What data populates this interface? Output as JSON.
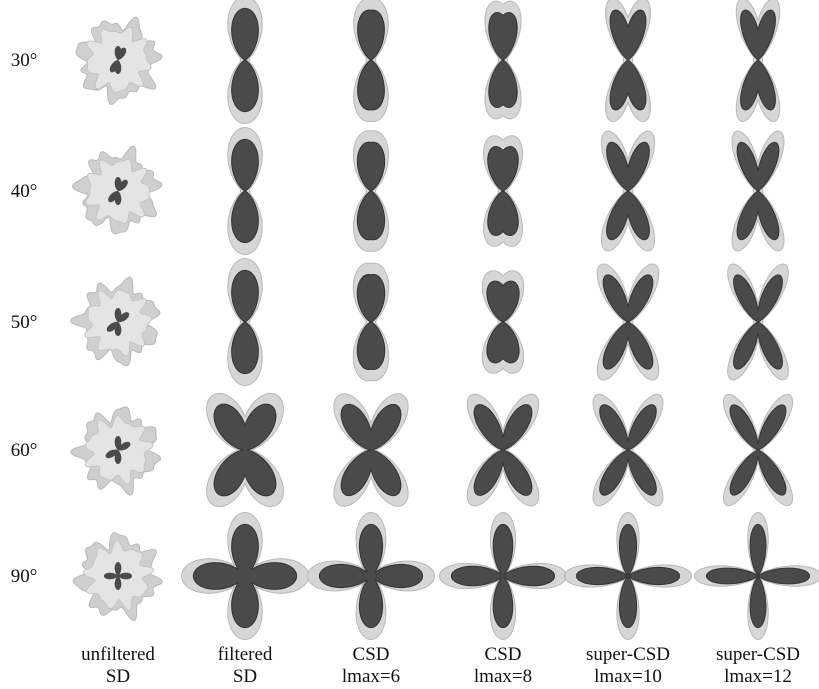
{
  "rows": [
    {
      "label": "30°",
      "angle": 30
    },
    {
      "label": "40°",
      "angle": 40
    },
    {
      "label": "50°",
      "angle": 50
    },
    {
      "label": "60°",
      "angle": 60
    },
    {
      "label": "90°",
      "angle": 90
    }
  ],
  "columns": [
    {
      "line1": "unfiltered",
      "line2": "SD",
      "kind": "blob"
    },
    {
      "line1": "filtered",
      "line2": "SD",
      "kind": "lobes",
      "sharp": 1.0
    },
    {
      "line1": "CSD",
      "line2": "lmax=6",
      "kind": "lobes",
      "sharp": 1.6
    },
    {
      "line1": "CSD",
      "line2": "lmax=8",
      "kind": "lobes",
      "sharp": 2.6
    },
    {
      "line1": "super-CSD",
      "line2": "lmax=10",
      "kind": "lobes",
      "sharp": 3.6
    },
    {
      "line1": "super-CSD",
      "line2": "lmax=12",
      "kind": "lobes",
      "sharp": 4.4
    }
  ],
  "colors": {
    "inner": "#4a4a4a",
    "outer": "#d6d6d6",
    "outer_stroke": "#b8b8b8",
    "blob": "#cfcfcf"
  }
}
